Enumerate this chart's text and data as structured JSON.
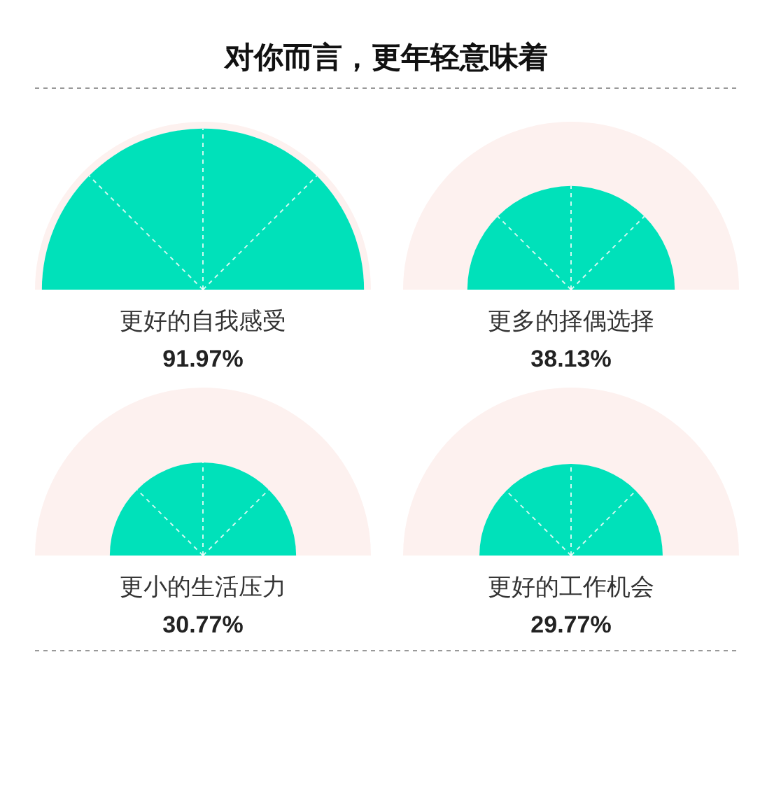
{
  "chart_data": {
    "type": "other",
    "title": "对你而言，更年轻意味着",
    "categories": [
      "更好的自我感受",
      "更多的择偶选择",
      "更小的生活压力",
      "更好的工作机会"
    ],
    "values": [
      91.97,
      38.13,
      30.77,
      29.77
    ],
    "value_labels": [
      "91.97%",
      "38.13%",
      "30.77%",
      "29.77%"
    ],
    "color": "#00e1ba"
  }
}
